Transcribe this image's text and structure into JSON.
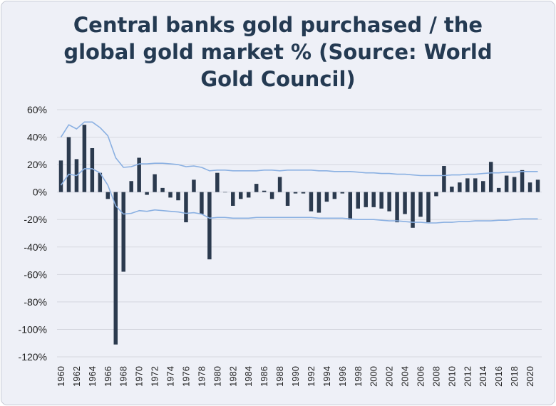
{
  "chart_data": {
    "type": "bar",
    "title": "Central banks gold purchased / the global gold market % (Source: World Gold Council)",
    "xlabel": "",
    "ylabel": "",
    "ylim": [
      -120,
      60
    ],
    "y_ticks": [
      "60%",
      "40%",
      "20%",
      "0%",
      "-20%",
      "-40%",
      "-60%",
      "-80%",
      "-100%",
      "-120%"
    ],
    "x_tick_labels": [
      "1960",
      "1962",
      "1964",
      "1966",
      "1968",
      "1970",
      "1972",
      "1974",
      "1976",
      "1978",
      "1980",
      "1982",
      "1984",
      "1986",
      "1988",
      "1990",
      "1992",
      "1994",
      "1996",
      "1998",
      "2000",
      "2002",
      "2004",
      "2006",
      "2008",
      "2010",
      "2012",
      "2014",
      "2016",
      "2018",
      "2020"
    ],
    "grid": true,
    "legend": "none",
    "categories": [
      1960,
      1961,
      1962,
      1963,
      1964,
      1965,
      1966,
      1967,
      1968,
      1969,
      1970,
      1971,
      1972,
      1973,
      1974,
      1975,
      1976,
      1977,
      1978,
      1979,
      1980,
      1981,
      1982,
      1983,
      1984,
      1985,
      1986,
      1987,
      1988,
      1989,
      1990,
      1991,
      1992,
      1993,
      1994,
      1995,
      1996,
      1997,
      1998,
      1999,
      2000,
      2001,
      2002,
      2003,
      2004,
      2005,
      2006,
      2007,
      2008,
      2009,
      2010,
      2011,
      2012,
      2013,
      2014,
      2015,
      2016,
      2017,
      2018,
      2019,
      2020,
      2021
    ],
    "series": [
      {
        "type": "bar",
        "color": "#2b3a4e",
        "values": [
          23,
          40,
          24,
          49,
          32,
          14,
          -5,
          -111,
          -58,
          8,
          25,
          -2,
          13,
          3,
          -4,
          -6,
          -22,
          9,
          -16,
          -49,
          14,
          0,
          -10,
          -5,
          -4,
          6,
          1,
          -5,
          11,
          -10,
          -1,
          -1,
          -14,
          -15,
          -7,
          -5,
          -1,
          -20,
          -12,
          -11,
          -11,
          -12,
          -14,
          -22,
          -16,
          -26,
          -18,
          -22,
          -3,
          19,
          4,
          7,
          10,
          10,
          8,
          22,
          3,
          12,
          11,
          16,
          7,
          9
        ]
      },
      {
        "type": "line",
        "color": "#8ab0e2",
        "values": [
          40,
          49,
          46,
          51,
          51,
          47,
          41,
          25,
          18,
          18.5,
          20.5,
          20.5,
          21,
          21,
          20.5,
          20,
          18.5,
          19,
          18,
          15.5,
          16,
          16,
          15.5,
          15.5,
          15.5,
          15.5,
          16,
          16,
          15.5,
          16,
          16,
          16,
          16,
          15.5,
          15.5,
          15,
          15,
          15,
          14.5,
          14,
          14,
          13.5,
          13.5,
          13,
          13,
          12.5,
          12,
          12,
          12,
          12,
          12.5,
          12.5,
          13,
          13,
          13.5,
          14,
          14,
          14.5,
          14.5,
          15,
          15,
          15
        ]
      },
      {
        "type": "line",
        "color": "#8ab0e2",
        "values": [
          5,
          13,
          12,
          17,
          17,
          14,
          5,
          -10,
          -16,
          -15.5,
          -13.5,
          -14,
          -13,
          -13.5,
          -14,
          -14.5,
          -15.5,
          -15,
          -16,
          -19,
          -18.5,
          -18.5,
          -19,
          -19,
          -19,
          -18.5,
          -18.5,
          -18.5,
          -18.5,
          -18.5,
          -18.5,
          -18.5,
          -18.5,
          -19,
          -19,
          -19,
          -19,
          -19.5,
          -20,
          -20,
          -20,
          -20.5,
          -21,
          -21,
          -21.5,
          -22,
          -22,
          -22.5,
          -22.5,
          -22,
          -22,
          -21.5,
          -21.5,
          -21,
          -21,
          -21,
          -20.5,
          -20.5,
          -20,
          -19.5,
          -19.5,
          -19.5
        ]
      }
    ]
  }
}
